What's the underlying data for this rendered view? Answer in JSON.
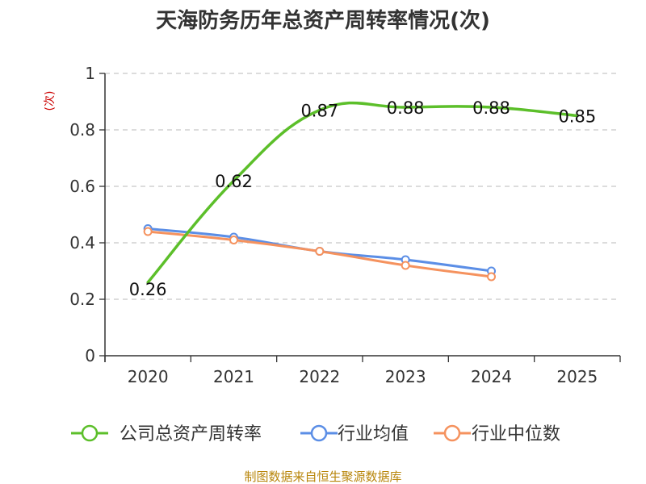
{
  "chart_data": {
    "type": "line",
    "title": "天海防务历年总资产周转率情况(次)",
    "ylabel": "(次)",
    "xlabel": "",
    "categories": [
      "2020",
      "2021",
      "2022",
      "2023",
      "2024",
      "2025"
    ],
    "ylim": [
      0,
      1
    ],
    "yticks": [
      "0",
      "0.2",
      "0.4",
      "0.6",
      "0.8",
      "1"
    ],
    "grid": true,
    "legend_position": "bottom",
    "series": [
      {
        "name": "公司总资产周转率",
        "color": "#5cbf2a",
        "markers": false,
        "show_labels": true,
        "values": [
          0.26,
          0.62,
          0.87,
          0.88,
          0.88,
          0.85
        ],
        "labels": [
          "0.26",
          "0.62",
          "0.87",
          "0.88",
          "0.88",
          "0.85"
        ]
      },
      {
        "name": "行业均值",
        "color": "#5b8ee6",
        "markers": true,
        "show_labels": false,
        "values": [
          0.45,
          0.42,
          0.37,
          0.34,
          0.3,
          null
        ]
      },
      {
        "name": "行业中位数",
        "color": "#f5925e",
        "markers": true,
        "show_labels": false,
        "values": [
          0.44,
          0.41,
          0.37,
          0.32,
          0.28,
          null
        ]
      }
    ]
  },
  "source_text": "制图数据来自恒生聚源数据库"
}
